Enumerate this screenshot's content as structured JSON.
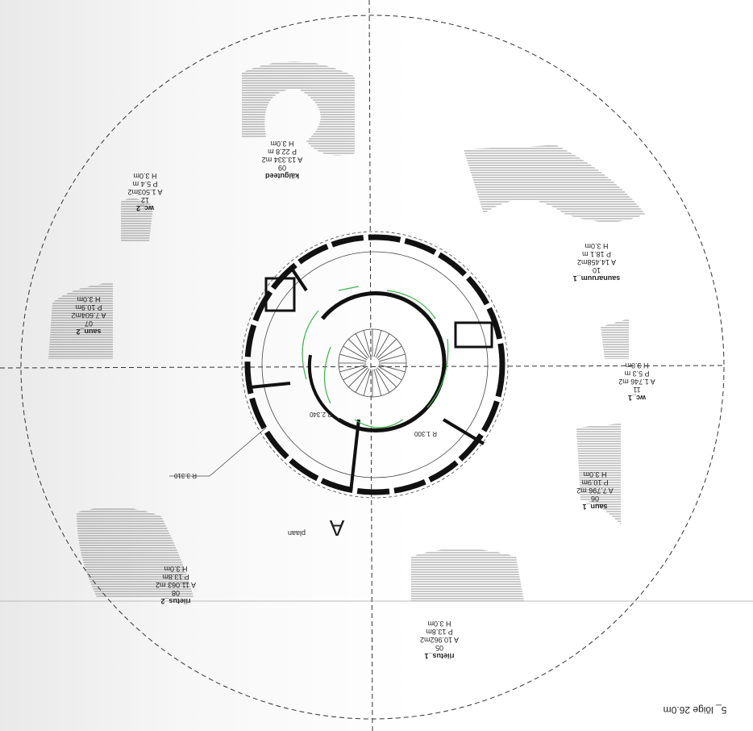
{
  "title": "5_ lõige 26.0m",
  "plan_label": "plaan",
  "plan_letter": "A",
  "radius_labels": [
    "R 1.300",
    "R 2.340",
    "R 3.310"
  ],
  "rooms": [
    {
      "name": "käiguteed",
      "number": "09",
      "area": "A 13.334 m2",
      "perimeter": "P 22.8 m",
      "height": "H 3.0m"
    },
    {
      "name": "wc_2",
      "number": "12",
      "area": "A 1.503m2",
      "perimeter": "P 5.4 m",
      "height": "H 3.0m"
    },
    {
      "name": "saunaruum_1",
      "number": "10",
      "area": "A 14.458m2",
      "perimeter": "P 18.1 m",
      "height": "H 3.0m"
    },
    {
      "name": "saun_2",
      "number": "07",
      "area": "A 7.604m2",
      "perimeter": "P 10.9m",
      "height": "H 3.0m"
    },
    {
      "name": "wc_1",
      "number": "11",
      "area": "A 1.746 m2",
      "perimeter": "P 5.3 m",
      "height": "H 3.0m"
    },
    {
      "name": "saun_1",
      "number": "06",
      "area": "A 7.796 m2",
      "perimeter": "P 10.9m",
      "height": "H 3.0m"
    },
    {
      "name": "riietus_1",
      "number": "05",
      "area": "A 10.962m2",
      "perimeter": "P 13.8m",
      "height": "H 3.0m"
    },
    {
      "name": "riietus_2",
      "number": "08",
      "area": "A 11.063 m2",
      "perimeter": "P 13.8m",
      "height": "H 3.0m"
    }
  ]
}
